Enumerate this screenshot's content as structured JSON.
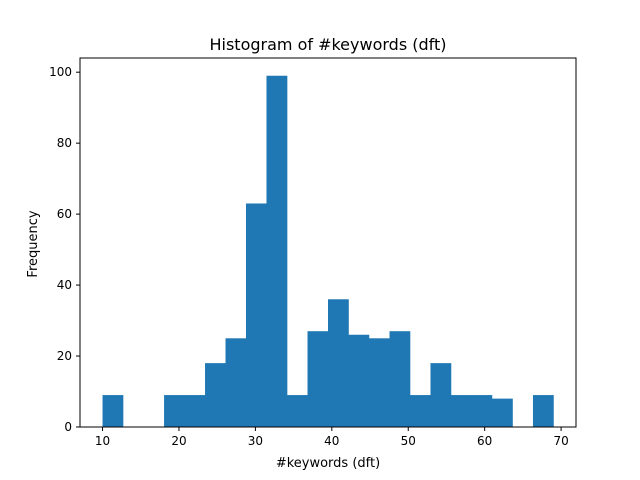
{
  "chart_data": {
    "type": "bar",
    "title": "Histogram of #keywords (dft)",
    "xlabel": "#keywords (dft)",
    "ylabel": "Frequency",
    "xlim": [
      7.05,
      71.95
    ],
    "ylim": [
      0,
      104
    ],
    "xticks": [
      10,
      20,
      30,
      40,
      50,
      60,
      70
    ],
    "yticks": [
      0,
      20,
      40,
      60,
      80,
      100
    ],
    "bar_color": "#1f77b4",
    "bin_edges": [
      10,
      12.68,
      15.36,
      18.05,
      20.73,
      23.41,
      26.09,
      28.77,
      31.45,
      34.14,
      36.82,
      39.5,
      42.18,
      44.86,
      47.55,
      50.23,
      52.91,
      55.59,
      58.27,
      60.95,
      63.64,
      66.32,
      69
    ],
    "values": [
      9,
      0,
      0,
      9,
      9,
      18,
      25,
      63,
      99,
      9,
      27,
      36,
      26,
      25,
      27,
      9,
      18,
      9,
      9,
      8,
      0,
      9
    ],
    "grid": false,
    "legend": false
  }
}
